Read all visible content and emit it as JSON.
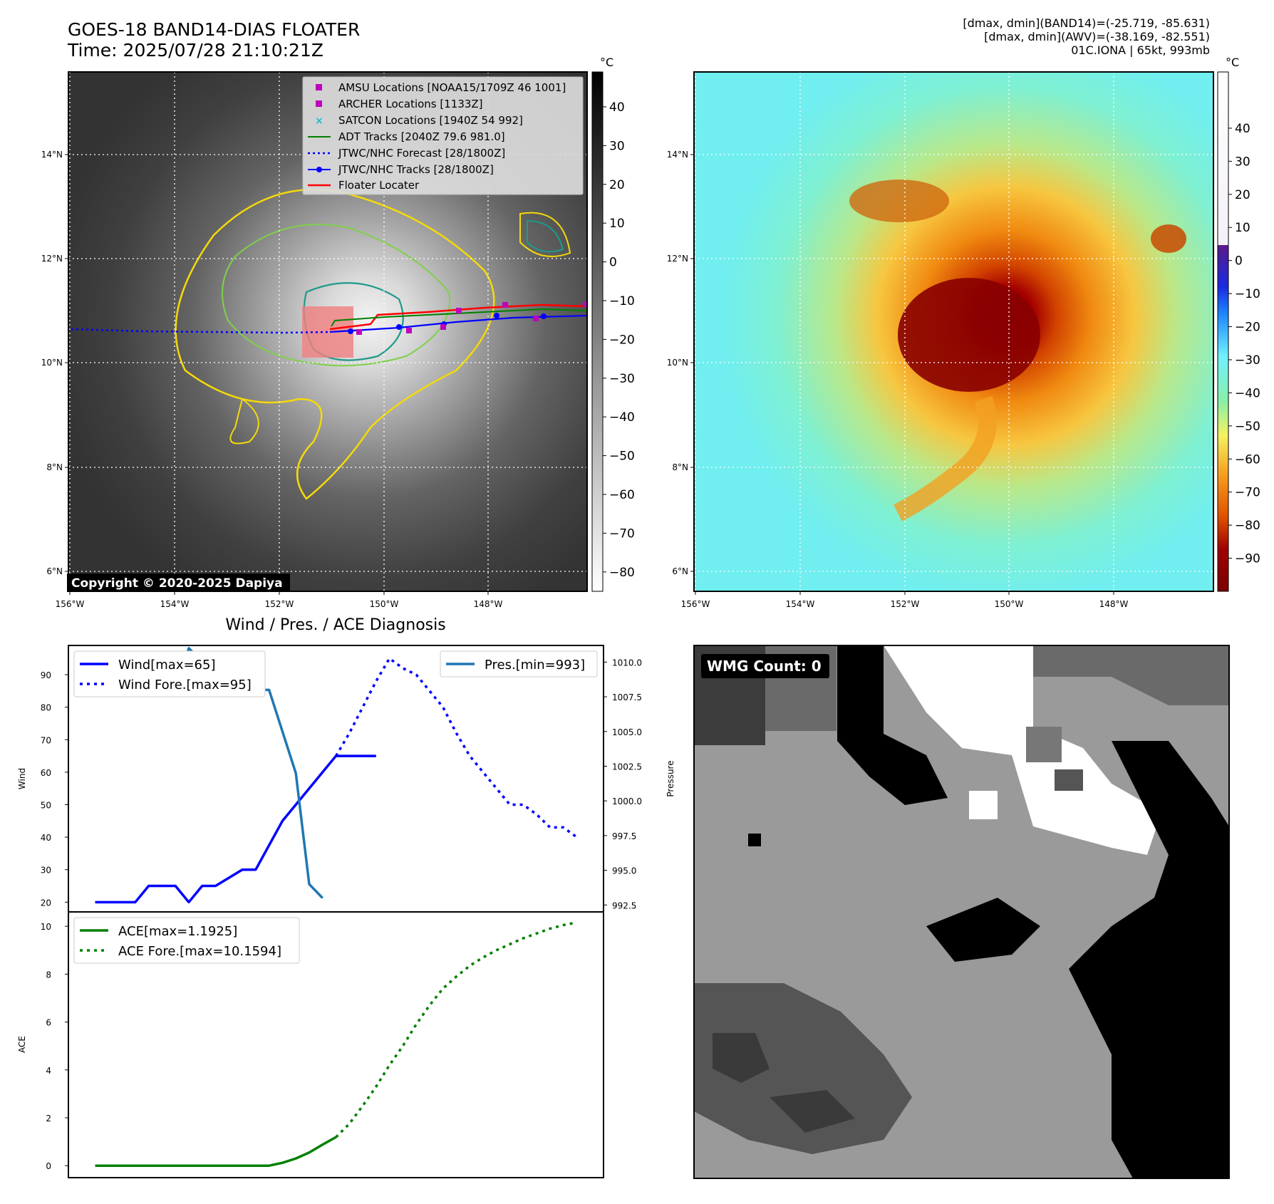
{
  "header": {
    "title_line1": "GOES-18 BAND14-DIAS FLOATER",
    "title_line2": "Time: 2025/07/28 21:10:21Z",
    "info_line1": "[dmax, dmin](BAND14)=(-25.719, -85.631)",
    "info_line2": "[dmax, dmin](AWV)=(-38.169, -82.551)",
    "info_line3": "01C.IONA | 65kt, 993mb"
  },
  "maps": {
    "lon_ticks": [
      "156°W",
      "154°W",
      "152°W",
      "150°W",
      "148°W"
    ],
    "lat_ticks": [
      "14°N",
      "12°N",
      "10°N",
      "8°N",
      "6°N"
    ],
    "copyright": "Copyright © 2020-2025 Dapiya",
    "colorbar_unit": "°C",
    "left_colorbar_ticks": [
      "40",
      "30",
      "20",
      "10",
      "0",
      "−10",
      "−20",
      "−30",
      "−40",
      "−50",
      "−60",
      "−70",
      "−80"
    ],
    "right_colorbar_ticks": [
      "40",
      "30",
      "20",
      "10",
      "0",
      "−10",
      "−20",
      "−30",
      "−40",
      "−50",
      "−60",
      "−70",
      "−80",
      "−90"
    ],
    "legend": [
      {
        "label": "AMSU Locations [NOAA15/1709Z 46 1001]",
        "marker": "square",
        "color": "#bf00bf"
      },
      {
        "label": "ARCHER Locations [1133Z]",
        "marker": "square",
        "color": "#bf00bf"
      },
      {
        "label": "SATCON Locations [1940Z 54 992]",
        "marker": "x",
        "color": "#17becf"
      },
      {
        "label": "ADT Tracks [2040Z 79.6 981.0]",
        "marker": "line",
        "color": "#008000"
      },
      {
        "label": "JTWC/NHC Forecast [28/1800Z]",
        "marker": "dotted",
        "color": "#0000ff"
      },
      {
        "label": "JTWC/NHC Tracks [28/1800Z]",
        "marker": "line-dot",
        "color": "#0000ff"
      },
      {
        "label": "Floater Locater",
        "marker": "line",
        "color": "#ff0000"
      }
    ],
    "wmg_label": "WMG Count: 0"
  },
  "chart_data": [
    {
      "type": "line",
      "title": "Wind / Pres. / ACE Diagnosis",
      "ylabel": "Wind",
      "ylabel_right": "Pressure",
      "ylim": [
        17,
        99
      ],
      "ylim_right": [
        992,
        1011.2
      ],
      "yticks": [
        "20",
        "30",
        "40",
        "50",
        "60",
        "70",
        "80",
        "90"
      ],
      "yticks_right": [
        "992.5",
        "995.0",
        "997.5",
        "1000.0",
        "1002.5",
        "1005.0",
        "1007.5",
        "1010.0"
      ],
      "x_index_range": [
        -2,
        38
      ],
      "series": [
        {
          "name": "Wind[max=65]",
          "style": "solid",
          "color": "#0000ff",
          "axis": "left",
          "x": [
            0,
            3,
            4,
            6,
            7,
            8,
            9,
            11,
            12,
            14,
            15,
            17,
            18,
            20,
            21
          ],
          "values": [
            20,
            20,
            25,
            25,
            20,
            25,
            25,
            30,
            30,
            45,
            50,
            60,
            65,
            65,
            65
          ]
        },
        {
          "name": "Wind Fore.[max=95]",
          "style": "dotted",
          "color": "#0000ff",
          "axis": "left",
          "x": [
            18,
            19,
            20,
            21,
            22,
            23,
            24,
            25,
            26,
            27,
            28,
            29,
            30,
            31,
            32,
            33,
            34,
            35,
            36
          ],
          "values": [
            65,
            72,
            80,
            88,
            95,
            92,
            90,
            85,
            80,
            72,
            65,
            60,
            55,
            50,
            50,
            47,
            43,
            43,
            40
          ]
        },
        {
          "name": "Pres.[min=993]",
          "style": "solid",
          "color": "#1f77b4",
          "axis": "right",
          "x": [
            0,
            1,
            2,
            3,
            4,
            5,
            6,
            7,
            8,
            9,
            10,
            11,
            12,
            13,
            14,
            15,
            16,
            17
          ],
          "values": [
            1010,
            1010,
            1010,
            1009.5,
            1009,
            1008,
            1008,
            1011,
            1010,
            1009,
            1008,
            1009,
            1008,
            1008,
            1005,
            1002,
            994,
            993
          ]
        }
      ]
    },
    {
      "type": "line",
      "ylabel": "ACE",
      "ylim": [
        -0.5,
        10.6
      ],
      "yticks": [
        "0",
        "2",
        "4",
        "6",
        "8",
        "10"
      ],
      "x_index_range": [
        -2,
        38
      ],
      "series": [
        {
          "name": "ACE[max=1.1925]",
          "style": "solid",
          "color": "#008000",
          "x": [
            0,
            4,
            8,
            12,
            13,
            14,
            15,
            16,
            17,
            18
          ],
          "values": [
            0,
            0,
            0,
            0,
            0,
            0.12,
            0.3,
            0.55,
            0.88,
            1.1925
          ]
        },
        {
          "name": "ACE Fore.[max=10.1594]",
          "style": "dotted",
          "color": "#008000",
          "x": [
            18,
            19,
            20,
            21,
            22,
            23,
            24,
            25,
            26,
            27,
            28,
            29,
            30,
            31,
            32,
            33,
            34,
            35,
            36
          ],
          "values": [
            1.19,
            1.75,
            2.5,
            3.3,
            4.2,
            5.0,
            5.9,
            6.7,
            7.4,
            7.9,
            8.35,
            8.7,
            9.0,
            9.25,
            9.5,
            9.7,
            9.9,
            10.05,
            10.1594
          ]
        }
      ]
    }
  ]
}
